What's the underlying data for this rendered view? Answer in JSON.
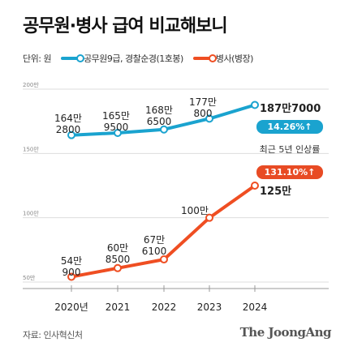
{
  "title": "공무원·병사 급여 비교해보니",
  "legend": {
    "unit": "단위: 원",
    "series_a": "공무원9급, 경찰순경(1호봉)",
    "series_b": "병사(병장)"
  },
  "colors": {
    "civil": "#1aa3cf",
    "soldier": "#ef4e22",
    "badge_civil": "#1aa3cf",
    "badge_soldier": "#e84b24",
    "grid": "#dddddd"
  },
  "chart_data": {
    "type": "line",
    "x": [
      "2020년",
      "2021",
      "2022",
      "2023",
      "2024"
    ],
    "y_ticks": [
      "50만",
      "100만",
      "150만",
      "200만"
    ],
    "ylim": [
      500000,
      2000000
    ],
    "series": [
      {
        "name": "공무원9급, 경찰순경(1호봉)",
        "values": [
          1642800,
          1659500,
          1686500,
          1770800,
          1877000
        ],
        "labels": [
          [
            "164만",
            "2800"
          ],
          [
            "165만",
            "9500"
          ],
          [
            "168만",
            "6500"
          ],
          [
            "177만",
            "800"
          ],
          [
            "187만7000"
          ]
        ]
      },
      {
        "name": "병사(병장)",
        "values": [
          540900,
          608500,
          676100,
          1000000,
          1250000
        ],
        "labels": [
          [
            "54만",
            "900"
          ],
          [
            "60만",
            "8500"
          ],
          [
            "67만",
            "6100"
          ],
          [
            "100만"
          ],
          [
            "125만"
          ]
        ]
      }
    ],
    "annotations": {
      "civil_badge": "14.26%↑",
      "caption": "최근 5년 인상률",
      "soldier_badge": "131.10%↑"
    }
  },
  "source": "자료: 인사혁신처",
  "brand": "The JoongAng"
}
